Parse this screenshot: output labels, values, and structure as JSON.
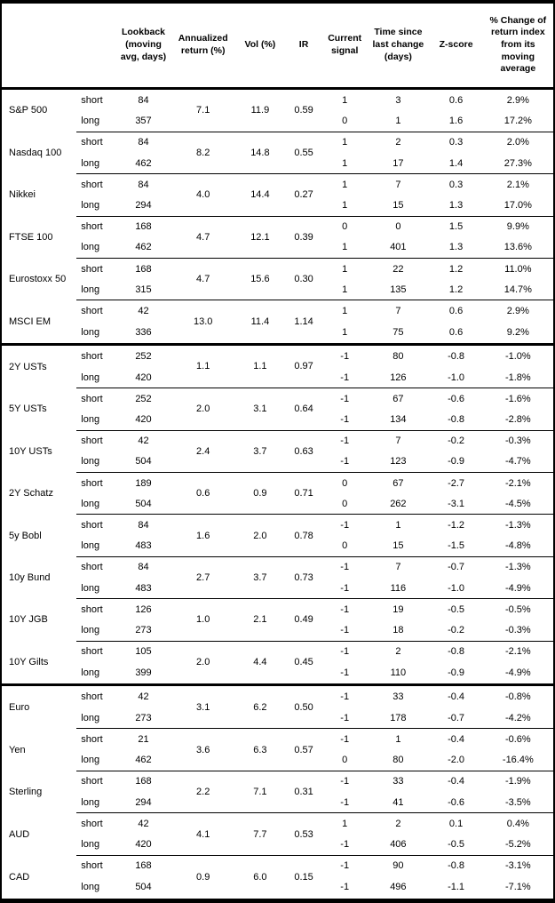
{
  "colors": {
    "border": "#000000",
    "text": "#000000",
    "background": "#ffffff"
  },
  "table": {
    "headers": {
      "lookback": "Lookback\n(moving\navg, days)",
      "annualized_return": "Annualized\nreturn (%)",
      "vol": "Vol (%)",
      "ir": "IR",
      "current_signal": "Current\nsignal",
      "time_since": "Time since\nlast change\n(days)",
      "z_score": "Z-score",
      "pct_change": "% Change of\nreturn index\nfrom its\nmoving\naverage"
    },
    "sections": [
      {
        "groups": [
          {
            "asset": "S&P 500",
            "annualized_return": "7.1",
            "vol": "11.9",
            "ir": "0.59",
            "rows": [
              {
                "horizon": "short",
                "lookback": "84",
                "signal": "1",
                "time_since": "3",
                "z_score": "0.6",
                "pct_change": "2.9%"
              },
              {
                "horizon": "long",
                "lookback": "357",
                "signal": "0",
                "time_since": "1",
                "z_score": "1.6",
                "pct_change": "17.2%"
              }
            ]
          },
          {
            "asset": "Nasdaq 100",
            "annualized_return": "8.2",
            "vol": "14.8",
            "ir": "0.55",
            "rows": [
              {
                "horizon": "short",
                "lookback": "84",
                "signal": "1",
                "time_since": "2",
                "z_score": "0.3",
                "pct_change": "2.0%"
              },
              {
                "horizon": "long",
                "lookback": "462",
                "signal": "1",
                "time_since": "17",
                "z_score": "1.4",
                "pct_change": "27.3%"
              }
            ]
          },
          {
            "asset": "Nikkei",
            "annualized_return": "4.0",
            "vol": "14.4",
            "ir": "0.27",
            "rows": [
              {
                "horizon": "short",
                "lookback": "84",
                "signal": "1",
                "time_since": "7",
                "z_score": "0.3",
                "pct_change": "2.1%"
              },
              {
                "horizon": "long",
                "lookback": "294",
                "signal": "1",
                "time_since": "15",
                "z_score": "1.3",
                "pct_change": "17.0%"
              }
            ]
          },
          {
            "asset": "FTSE 100",
            "annualized_return": "4.7",
            "vol": "12.1",
            "ir": "0.39",
            "rows": [
              {
                "horizon": "short",
                "lookback": "168",
                "signal": "0",
                "time_since": "0",
                "z_score": "1.5",
                "pct_change": "9.9%"
              },
              {
                "horizon": "long",
                "lookback": "462",
                "signal": "1",
                "time_since": "401",
                "z_score": "1.3",
                "pct_change": "13.6%"
              }
            ]
          },
          {
            "asset": "Eurostoxx 50",
            "annualized_return": "4.7",
            "vol": "15.6",
            "ir": "0.30",
            "rows": [
              {
                "horizon": "short",
                "lookback": "168",
                "signal": "1",
                "time_since": "22",
                "z_score": "1.2",
                "pct_change": "11.0%"
              },
              {
                "horizon": "long",
                "lookback": "315",
                "signal": "1",
                "time_since": "135",
                "z_score": "1.2",
                "pct_change": "14.7%"
              }
            ]
          },
          {
            "asset": "MSCI EM",
            "annualized_return": "13.0",
            "vol": "11.4",
            "ir": "1.14",
            "rows": [
              {
                "horizon": "short",
                "lookback": "42",
                "signal": "1",
                "time_since": "7",
                "z_score": "0.6",
                "pct_change": "2.9%"
              },
              {
                "horizon": "long",
                "lookback": "336",
                "signal": "1",
                "time_since": "75",
                "z_score": "0.6",
                "pct_change": "9.2%"
              }
            ]
          }
        ]
      },
      {
        "groups": [
          {
            "asset": "2Y USTs",
            "annualized_return": "1.1",
            "vol": "1.1",
            "ir": "0.97",
            "rows": [
              {
                "horizon": "short",
                "lookback": "252",
                "signal": "-1",
                "time_since": "80",
                "z_score": "-0.8",
                "pct_change": "-1.0%"
              },
              {
                "horizon": "long",
                "lookback": "420",
                "signal": "-1",
                "time_since": "126",
                "z_score": "-1.0",
                "pct_change": "-1.8%"
              }
            ]
          },
          {
            "asset": "5Y USTs",
            "annualized_return": "2.0",
            "vol": "3.1",
            "ir": "0.64",
            "rows": [
              {
                "horizon": "short",
                "lookback": "252",
                "signal": "-1",
                "time_since": "67",
                "z_score": "-0.6",
                "pct_change": "-1.6%"
              },
              {
                "horizon": "long",
                "lookback": "420",
                "signal": "-1",
                "time_since": "134",
                "z_score": "-0.8",
                "pct_change": "-2.8%"
              }
            ]
          },
          {
            "asset": "10Y USTs",
            "annualized_return": "2.4",
            "vol": "3.7",
            "ir": "0.63",
            "rows": [
              {
                "horizon": "short",
                "lookback": "42",
                "signal": "-1",
                "time_since": "7",
                "z_score": "-0.2",
                "pct_change": "-0.3%"
              },
              {
                "horizon": "long",
                "lookback": "504",
                "signal": "-1",
                "time_since": "123",
                "z_score": "-0.9",
                "pct_change": "-4.7%"
              }
            ]
          },
          {
            "asset": "2Y Schatz",
            "annualized_return": "0.6",
            "vol": "0.9",
            "ir": "0.71",
            "rows": [
              {
                "horizon": "short",
                "lookback": "189",
                "signal": "0",
                "time_since": "67",
                "z_score": "-2.7",
                "pct_change": "-2.1%"
              },
              {
                "horizon": "long",
                "lookback": "504",
                "signal": "0",
                "time_since": "262",
                "z_score": "-3.1",
                "pct_change": "-4.5%"
              }
            ]
          },
          {
            "asset": "5y Bobl",
            "annualized_return": "1.6",
            "vol": "2.0",
            "ir": "0.78",
            "rows": [
              {
                "horizon": "short",
                "lookback": "84",
                "signal": "-1",
                "time_since": "1",
                "z_score": "-1.2",
                "pct_change": "-1.3%"
              },
              {
                "horizon": "long",
                "lookback": "483",
                "signal": "0",
                "time_since": "15",
                "z_score": "-1.5",
                "pct_change": "-4.8%"
              }
            ]
          },
          {
            "asset": "10y Bund",
            "annualized_return": "2.7",
            "vol": "3.7",
            "ir": "0.73",
            "rows": [
              {
                "horizon": "short",
                "lookback": "84",
                "signal": "-1",
                "time_since": "7",
                "z_score": "-0.7",
                "pct_change": "-1.3%"
              },
              {
                "horizon": "long",
                "lookback": "483",
                "signal": "-1",
                "time_since": "116",
                "z_score": "-1.0",
                "pct_change": "-4.9%"
              }
            ]
          },
          {
            "asset": "10Y JGB",
            "annualized_return": "1.0",
            "vol": "2.1",
            "ir": "0.49",
            "rows": [
              {
                "horizon": "short",
                "lookback": "126",
                "signal": "-1",
                "time_since": "19",
                "z_score": "-0.5",
                "pct_change": "-0.5%"
              },
              {
                "horizon": "long",
                "lookback": "273",
                "signal": "-1",
                "time_since": "18",
                "z_score": "-0.2",
                "pct_change": "-0.3%"
              }
            ]
          },
          {
            "asset": "10Y Gilts",
            "annualized_return": "2.0",
            "vol": "4.4",
            "ir": "0.45",
            "rows": [
              {
                "horizon": "short",
                "lookback": "105",
                "signal": "-1",
                "time_since": "2",
                "z_score": "-0.8",
                "pct_change": "-2.1%"
              },
              {
                "horizon": "long",
                "lookback": "399",
                "signal": "-1",
                "time_since": "110",
                "z_score": "-0.9",
                "pct_change": "-4.9%"
              }
            ]
          }
        ]
      },
      {
        "groups": [
          {
            "asset": "Euro",
            "annualized_return": "3.1",
            "vol": "6.2",
            "ir": "0.50",
            "rows": [
              {
                "horizon": "short",
                "lookback": "42",
                "signal": "-1",
                "time_since": "33",
                "z_score": "-0.4",
                "pct_change": "-0.8%"
              },
              {
                "horizon": "long",
                "lookback": "273",
                "signal": "-1",
                "time_since": "178",
                "z_score": "-0.7",
                "pct_change": "-4.2%"
              }
            ]
          },
          {
            "asset": "Yen",
            "annualized_return": "3.6",
            "vol": "6.3",
            "ir": "0.57",
            "rows": [
              {
                "horizon": "short",
                "lookback": "21",
                "signal": "-1",
                "time_since": "1",
                "z_score": "-0.4",
                "pct_change": "-0.6%"
              },
              {
                "horizon": "long",
                "lookback": "462",
                "signal": "0",
                "time_since": "80",
                "z_score": "-2.0",
                "pct_change": "-16.4%"
              }
            ]
          },
          {
            "asset": "Sterling",
            "annualized_return": "2.2",
            "vol": "7.1",
            "ir": "0.31",
            "rows": [
              {
                "horizon": "short",
                "lookback": "168",
                "signal": "-1",
                "time_since": "33",
                "z_score": "-0.4",
                "pct_change": "-1.9%"
              },
              {
                "horizon": "long",
                "lookback": "294",
                "signal": "-1",
                "time_since": "41",
                "z_score": "-0.6",
                "pct_change": "-3.5%"
              }
            ]
          },
          {
            "asset": "AUD",
            "annualized_return": "4.1",
            "vol": "7.7",
            "ir": "0.53",
            "rows": [
              {
                "horizon": "short",
                "lookback": "42",
                "signal": "1",
                "time_since": "2",
                "z_score": "0.1",
                "pct_change": "0.4%"
              },
              {
                "horizon": "long",
                "lookback": "420",
                "signal": "-1",
                "time_since": "406",
                "z_score": "-0.5",
                "pct_change": "-5.2%"
              }
            ]
          },
          {
            "asset": "CAD",
            "annualized_return": "0.9",
            "vol": "6.0",
            "ir": "0.15",
            "rows": [
              {
                "horizon": "short",
                "lookback": "168",
                "signal": "-1",
                "time_since": "90",
                "z_score": "-0.8",
                "pct_change": "-3.1%"
              },
              {
                "horizon": "long",
                "lookback": "504",
                "signal": "-1",
                "time_since": "496",
                "z_score": "-1.1",
                "pct_change": "-7.1%"
              }
            ]
          }
        ]
      }
    ]
  }
}
